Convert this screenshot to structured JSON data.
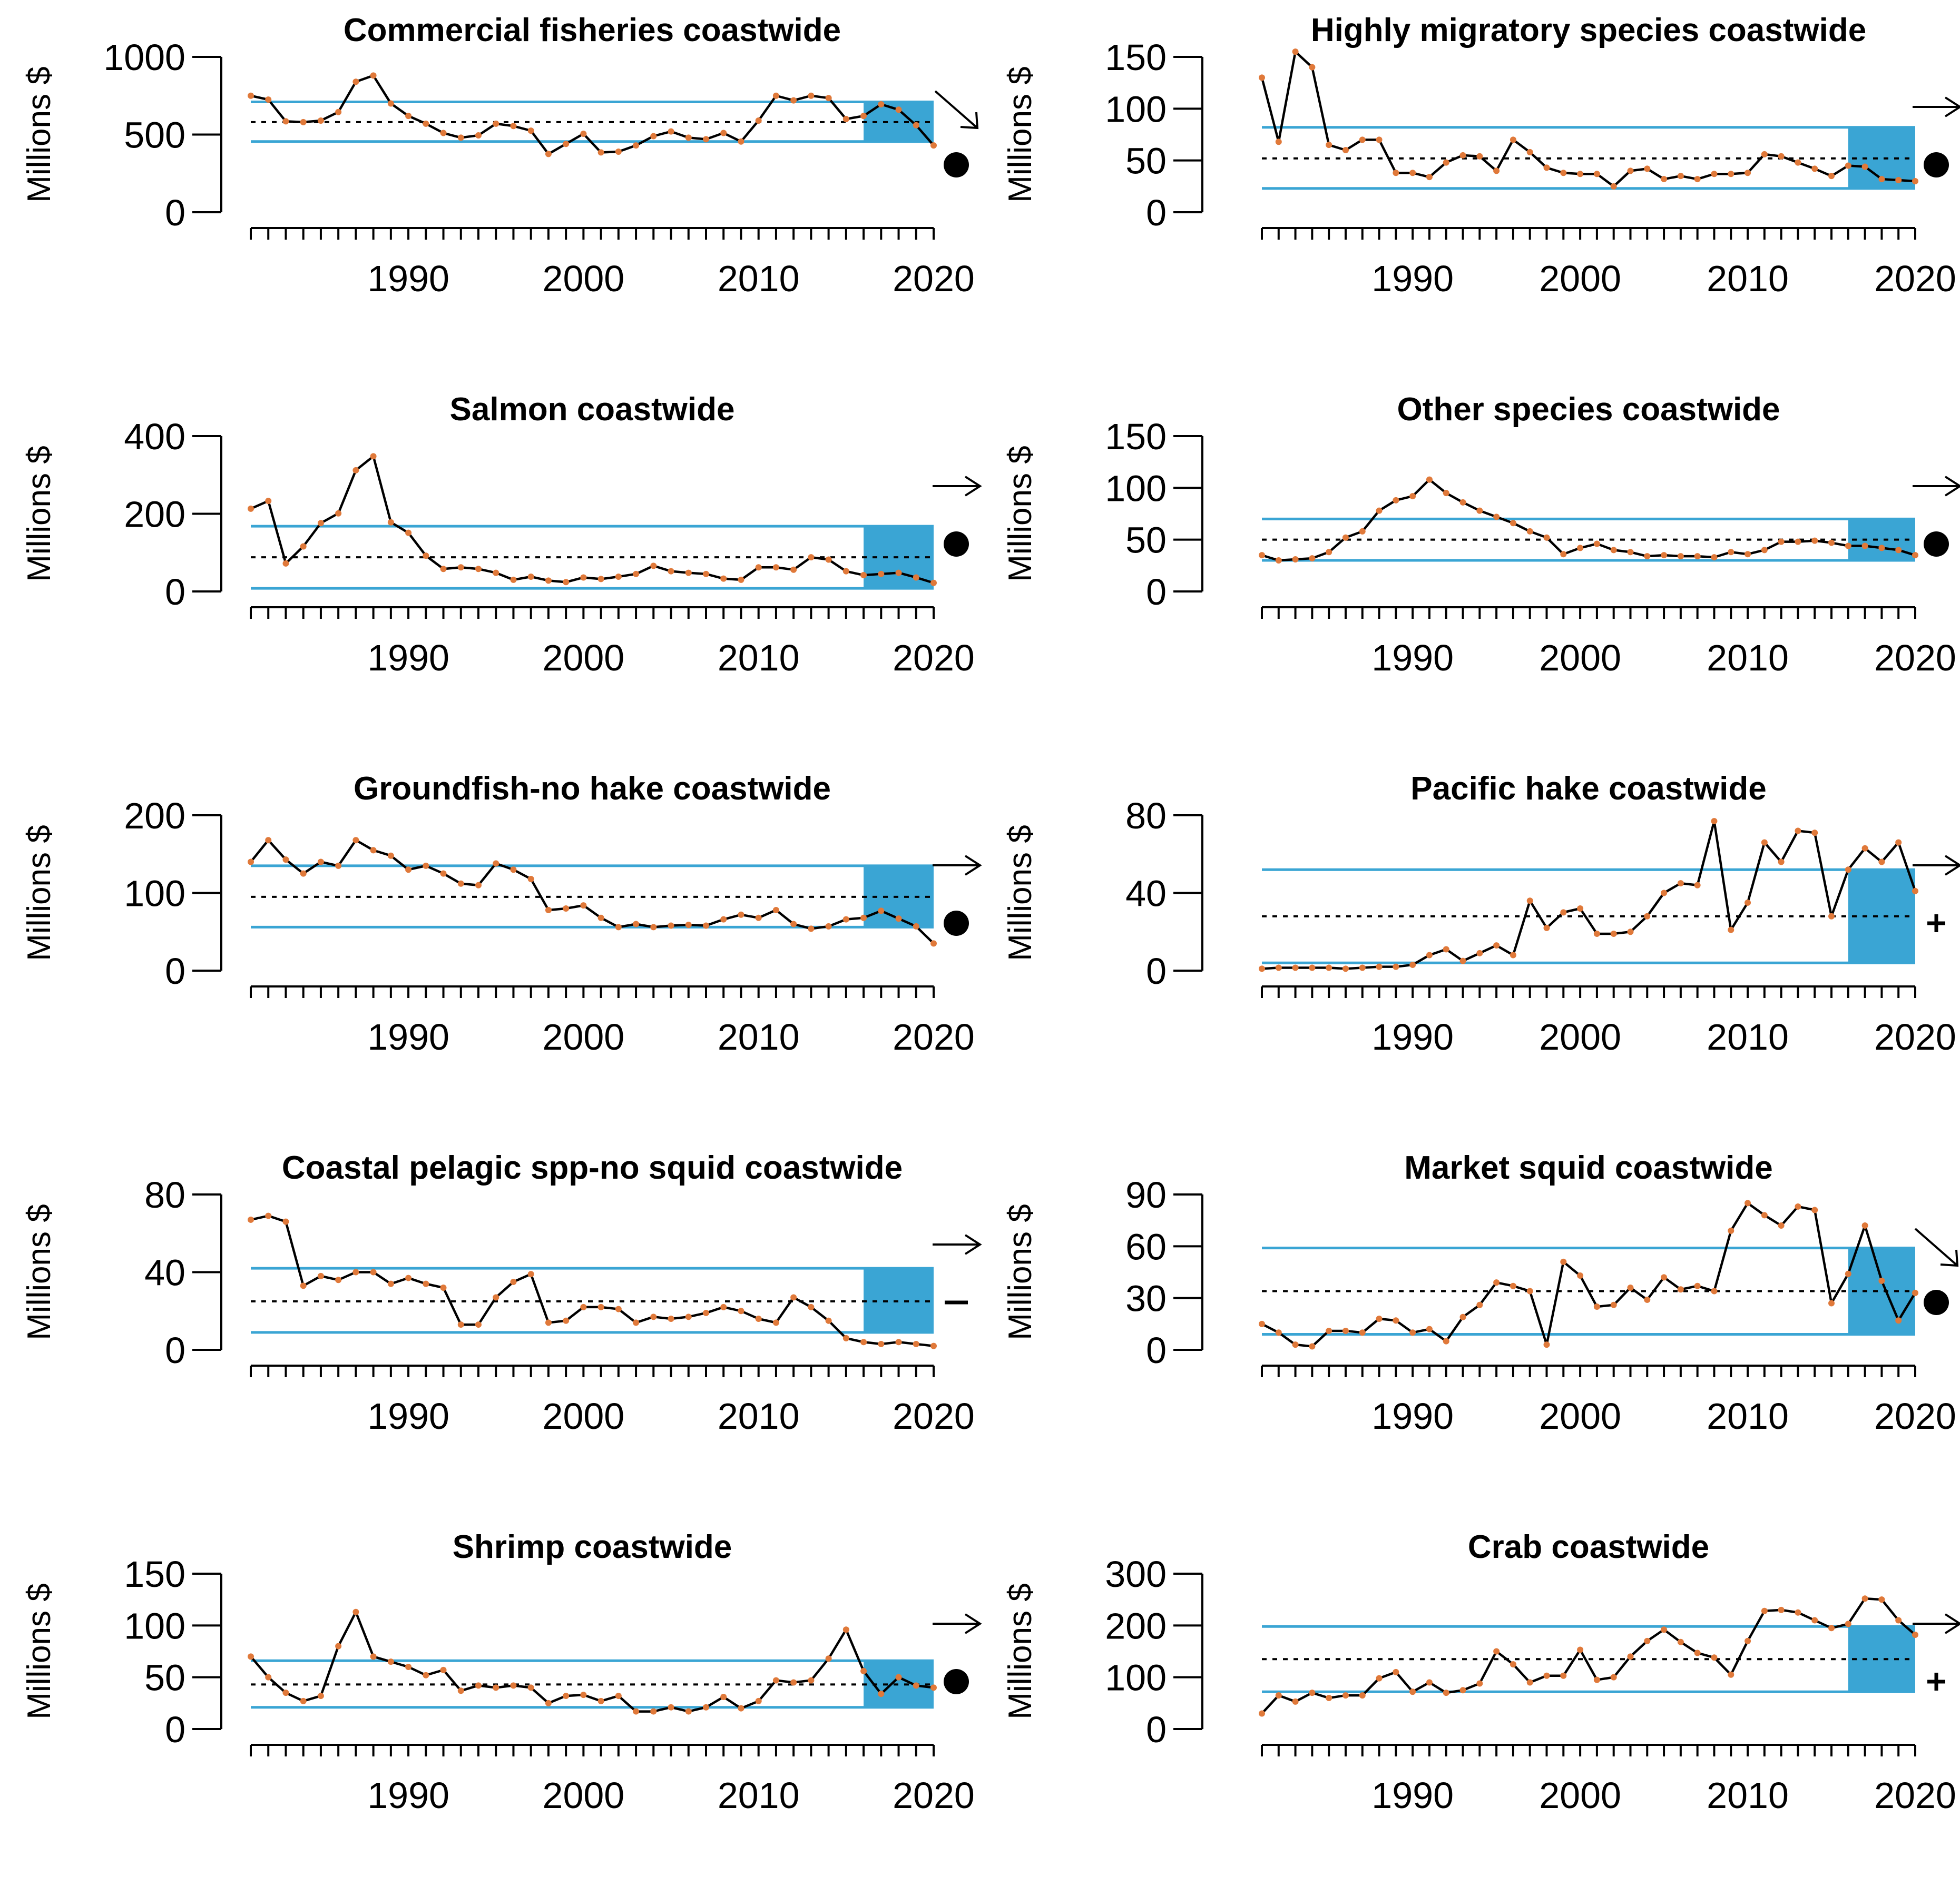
{
  "colors": {
    "series_line": "#000000",
    "points": "#e0793a",
    "sd_lines": "#3aa5d4",
    "recent_box": "#3aa5d4",
    "mean_line": "#000000"
  },
  "chart_data": [
    {
      "type": "line",
      "title": "Commercial fisheries coastwide",
      "ylabel": "Millions $",
      "ylim": [
        0,
        1000
      ],
      "yticks": [
        "0",
        "500",
        "1000"
      ],
      "xticks": [
        "1990",
        "2000",
        "2010",
        "2020"
      ],
      "x": [
        1981,
        1982,
        1983,
        1984,
        1985,
        1986,
        1987,
        1988,
        1989,
        1990,
        1991,
        1992,
        1993,
        1994,
        1995,
        1996,
        1997,
        1998,
        1999,
        2000,
        2001,
        2002,
        2003,
        2004,
        2005,
        2006,
        2007,
        2008,
        2009,
        2010,
        2011,
        2012,
        2013,
        2014,
        2015,
        2016,
        2017,
        2018,
        2019,
        2020
      ],
      "values": [
        750,
        725,
        585,
        580,
        590,
        645,
        840,
        880,
        700,
        620,
        570,
        510,
        480,
        495,
        570,
        555,
        525,
        375,
        440,
        505,
        385,
        390,
        430,
        490,
        520,
        480,
        470,
        510,
        455,
        590,
        750,
        720,
        750,
        735,
        600,
        620,
        695,
        660,
        560,
        430
      ],
      "mean": 580,
      "sd_upper": 710,
      "sd_lower": 455,
      "recent_window": [
        2016,
        2020
      ],
      "trend_symbol": "arrow-down",
      "mean_symbol": "dot"
    },
    {
      "type": "line",
      "title": "Highly migratory species coastwide",
      "ylabel": "Millions $",
      "ylim": [
        0,
        150
      ],
      "yticks": [
        "0",
        "50",
        "100",
        "150"
      ],
      "xticks": [
        "1990",
        "2000",
        "2010",
        "2020"
      ],
      "x": [
        1981,
        1982,
        1983,
        1984,
        1985,
        1986,
        1987,
        1988,
        1989,
        1990,
        1991,
        1992,
        1993,
        1994,
        1995,
        1996,
        1997,
        1998,
        1999,
        2000,
        2001,
        2002,
        2003,
        2004,
        2005,
        2006,
        2007,
        2008,
        2009,
        2010,
        2011,
        2012,
        2013,
        2014,
        2015,
        2016,
        2017,
        2018,
        2019,
        2020
      ],
      "values": [
        130,
        68,
        155,
        140,
        65,
        60,
        70,
        70,
        38,
        38,
        34,
        48,
        55,
        54,
        40,
        70,
        58,
        43,
        38,
        37,
        37,
        25,
        40,
        42,
        32,
        35,
        32,
        37,
        37,
        38,
        56,
        54,
        48,
        42,
        35,
        45,
        44,
        32,
        31,
        30
      ],
      "mean": 52,
      "sd_upper": 82,
      "sd_lower": 23,
      "recent_window": [
        2016,
        2020
      ],
      "trend_symbol": "arrow-right",
      "mean_symbol": "dot"
    },
    {
      "type": "line",
      "title": "Salmon coastwide",
      "ylabel": "Millions $",
      "ylim": [
        0,
        400
      ],
      "yticks": [
        "0",
        "200",
        "400"
      ],
      "xticks": [
        "1990",
        "2000",
        "2010",
        "2020"
      ],
      "x": [
        1981,
        1982,
        1983,
        1984,
        1985,
        1986,
        1987,
        1988,
        1989,
        1990,
        1991,
        1992,
        1993,
        1994,
        1995,
        1996,
        1997,
        1998,
        1999,
        2000,
        2001,
        2002,
        2003,
        2004,
        2005,
        2006,
        2007,
        2008,
        2009,
        2010,
        2011,
        2012,
        2013,
        2014,
        2015,
        2016,
        2017,
        2018,
        2019,
        2020
      ],
      "values": [
        213,
        233,
        72,
        116,
        176,
        201,
        312,
        348,
        178,
        151,
        92,
        58,
        62,
        58,
        48,
        30,
        38,
        28,
        24,
        36,
        32,
        38,
        45,
        66,
        52,
        48,
        45,
        33,
        30,
        62,
        62,
        56,
        88,
        82,
        52,
        42,
        45,
        48,
        36,
        22
      ],
      "mean": 88,
      "sd_upper": 168,
      "sd_lower": 8,
      "recent_window": [
        2016,
        2020
      ],
      "trend_symbol": "arrow-right",
      "mean_symbol": "dot"
    },
    {
      "type": "line",
      "title": "Other species coastwide",
      "ylabel": "Millions $",
      "ylim": [
        0,
        150
      ],
      "yticks": [
        "0",
        "50",
        "100",
        "150"
      ],
      "xticks": [
        "1990",
        "2000",
        "2010",
        "2020"
      ],
      "x": [
        1981,
        1982,
        1983,
        1984,
        1985,
        1986,
        1987,
        1988,
        1989,
        1990,
        1991,
        1992,
        1993,
        1994,
        1995,
        1996,
        1997,
        1998,
        1999,
        2000,
        2001,
        2002,
        2003,
        2004,
        2005,
        2006,
        2007,
        2008,
        2009,
        2010,
        2011,
        2012,
        2013,
        2014,
        2015,
        2016,
        2017,
        2018,
        2019,
        2020
      ],
      "values": [
        35,
        30,
        31,
        32,
        38,
        52,
        58,
        78,
        88,
        92,
        108,
        95,
        86,
        78,
        72,
        66,
        58,
        52,
        36,
        42,
        46,
        40,
        38,
        34,
        35,
        34,
        34,
        33,
        38,
        36,
        40,
        48,
        48,
        49,
        47,
        44,
        44,
        42,
        40,
        35
      ],
      "mean": 50,
      "sd_upper": 70,
      "sd_lower": 30,
      "recent_window": [
        2016,
        2020
      ],
      "trend_symbol": "arrow-right",
      "mean_symbol": "dot"
    },
    {
      "type": "line",
      "title": "Groundfish-no hake coastwide",
      "ylabel": "Millions $",
      "ylim": [
        0,
        200
      ],
      "yticks": [
        "0",
        "100",
        "200"
      ],
      "xticks": [
        "1990",
        "2000",
        "2010",
        "2020"
      ],
      "x": [
        1981,
        1982,
        1983,
        1984,
        1985,
        1986,
        1987,
        1988,
        1989,
        1990,
        1991,
        1992,
        1993,
        1994,
        1995,
        1996,
        1997,
        1998,
        1999,
        2000,
        2001,
        2002,
        2003,
        2004,
        2005,
        2006,
        2007,
        2008,
        2009,
        2010,
        2011,
        2012,
        2013,
        2014,
        2015,
        2016,
        2017,
        2018,
        2019,
        2020
      ],
      "values": [
        140,
        168,
        143,
        125,
        140,
        135,
        168,
        155,
        148,
        130,
        135,
        125,
        112,
        110,
        138,
        130,
        118,
        78,
        80,
        84,
        68,
        56,
        60,
        56,
        58,
        59,
        58,
        66,
        72,
        68,
        78,
        60,
        54,
        57,
        66,
        68,
        77,
        67,
        57,
        35
      ],
      "mean": 95,
      "sd_upper": 135,
      "sd_lower": 56,
      "recent_window": [
        2016,
        2020
      ],
      "trend_symbol": "arrow-right",
      "mean_symbol": "dot"
    },
    {
      "type": "line",
      "title": "Pacific hake coastwide",
      "ylabel": "Millions $",
      "ylim": [
        0,
        80
      ],
      "yticks": [
        "0",
        "40",
        "80"
      ],
      "xticks": [
        "1990",
        "2000",
        "2010",
        "2020"
      ],
      "x": [
        1981,
        1982,
        1983,
        1984,
        1985,
        1986,
        1987,
        1988,
        1989,
        1990,
        1991,
        1992,
        1993,
        1994,
        1995,
        1996,
        1997,
        1998,
        1999,
        2000,
        2001,
        2002,
        2003,
        2004,
        2005,
        2006,
        2007,
        2008,
        2009,
        2010,
        2011,
        2012,
        2013,
        2014,
        2015,
        2016,
        2017,
        2018,
        2019,
        2020
      ],
      "values": [
        1,
        1.5,
        1.5,
        1.5,
        1.5,
        1,
        1.5,
        2,
        2,
        3,
        8,
        11,
        5,
        9,
        13,
        8,
        36,
        22,
        30,
        32,
        19,
        19,
        20,
        28,
        40,
        45,
        44,
        77,
        21,
        35,
        66,
        56,
        72,
        71,
        28,
        52,
        63,
        56,
        66,
        41
      ],
      "mean": 28,
      "sd_upper": 52,
      "sd_lower": 4,
      "recent_window": [
        2016,
        2020
      ],
      "trend_symbol": "arrow-right",
      "mean_symbol": "plus"
    },
    {
      "type": "line",
      "title": "Coastal pelagic spp-no squid coastwide",
      "ylabel": "Millions $",
      "ylim": [
        0,
        80
      ],
      "yticks": [
        "0",
        "40",
        "80"
      ],
      "xticks": [
        "1990",
        "2000",
        "2010",
        "2020"
      ],
      "x": [
        1981,
        1982,
        1983,
        1984,
        1985,
        1986,
        1987,
        1988,
        1989,
        1990,
        1991,
        1992,
        1993,
        1994,
        1995,
        1996,
        1997,
        1998,
        1999,
        2000,
        2001,
        2002,
        2003,
        2004,
        2005,
        2006,
        2007,
        2008,
        2009,
        2010,
        2011,
        2012,
        2013,
        2014,
        2015,
        2016,
        2017,
        2018,
        2019,
        2020
      ],
      "values": [
        67,
        69,
        66,
        33,
        38,
        36,
        40,
        40,
        34,
        37,
        34,
        32,
        13,
        13,
        27,
        35,
        39,
        14,
        15,
        22,
        22,
        21,
        14,
        17,
        16,
        17,
        19,
        22,
        20,
        16,
        14,
        27,
        22,
        15,
        6,
        4,
        3,
        4,
        3,
        2
      ],
      "mean": 25,
      "sd_upper": 42,
      "sd_lower": 9,
      "recent_window": [
        2016,
        2020
      ],
      "trend_symbol": "arrow-right",
      "mean_symbol": "minus"
    },
    {
      "type": "line",
      "title": "Market squid coastwide",
      "ylabel": "Millions $",
      "ylim": [
        0,
        90
      ],
      "yticks": [
        "0",
        "30",
        "60",
        "90"
      ],
      "xticks": [
        "1990",
        "2000",
        "2010",
        "2020"
      ],
      "x": [
        1981,
        1982,
        1983,
        1984,
        1985,
        1986,
        1987,
        1988,
        1989,
        1990,
        1991,
        1992,
        1993,
        1994,
        1995,
        1996,
        1997,
        1998,
        1999,
        2000,
        2001,
        2002,
        2003,
        2004,
        2005,
        2006,
        2007,
        2008,
        2009,
        2010,
        2011,
        2012,
        2013,
        2014,
        2015,
        2016,
        2017,
        2018,
        2019,
        2020
      ],
      "values": [
        15,
        10,
        3,
        2,
        11,
        11,
        10,
        18,
        17,
        10,
        12,
        5,
        19,
        26,
        39,
        37,
        34,
        3,
        51,
        43,
        25,
        26,
        36,
        29,
        42,
        35,
        37,
        34,
        69,
        85,
        78,
        72,
        83,
        81,
        27,
        44,
        72,
        40,
        17,
        33
      ],
      "mean": 34,
      "sd_upper": 59,
      "sd_lower": 9,
      "recent_window": [
        2016,
        2020
      ],
      "trend_symbol": "arrow-down",
      "mean_symbol": "dot"
    },
    {
      "type": "line",
      "title": "Shrimp coastwide",
      "ylabel": "Millions $",
      "ylim": [
        0,
        150
      ],
      "yticks": [
        "0",
        "50",
        "100",
        "150"
      ],
      "xticks": [
        "1990",
        "2000",
        "2010",
        "2020"
      ],
      "x": [
        1981,
        1982,
        1983,
        1984,
        1985,
        1986,
        1987,
        1988,
        1989,
        1990,
        1991,
        1992,
        1993,
        1994,
        1995,
        1996,
        1997,
        1998,
        1999,
        2000,
        2001,
        2002,
        2003,
        2004,
        2005,
        2006,
        2007,
        2008,
        2009,
        2010,
        2011,
        2012,
        2013,
        2014,
        2015,
        2016,
        2017,
        2018,
        2019,
        2020
      ],
      "values": [
        70,
        50,
        35,
        27,
        32,
        80,
        113,
        70,
        65,
        60,
        52,
        57,
        37,
        42,
        40,
        42,
        40,
        25,
        32,
        33,
        27,
        32,
        17,
        17,
        21,
        17,
        21,
        31,
        20,
        27,
        47,
        45,
        47,
        68,
        96,
        56,
        34,
        50,
        42,
        40
      ],
      "mean": 43,
      "sd_upper": 66,
      "sd_lower": 21,
      "recent_window": [
        2016,
        2020
      ],
      "trend_symbol": "arrow-right",
      "mean_symbol": "dot"
    },
    {
      "type": "line",
      "title": "Crab coastwide",
      "ylabel": "Millions $",
      "ylim": [
        0,
        300
      ],
      "yticks": [
        "0",
        "100",
        "200",
        "300"
      ],
      "xticks": [
        "1990",
        "2000",
        "2010",
        "2020"
      ],
      "x": [
        1981,
        1982,
        1983,
        1984,
        1985,
        1986,
        1987,
        1988,
        1989,
        1990,
        1991,
        1992,
        1993,
        1994,
        1995,
        1996,
        1997,
        1998,
        1999,
        2000,
        2001,
        2002,
        2003,
        2004,
        2005,
        2006,
        2007,
        2008,
        2009,
        2010,
        2011,
        2012,
        2013,
        2014,
        2015,
        2016,
        2017,
        2018,
        2019,
        2020
      ],
      "values": [
        30,
        65,
        53,
        70,
        60,
        65,
        65,
        98,
        110,
        72,
        90,
        70,
        75,
        88,
        150,
        125,
        90,
        103,
        103,
        153,
        95,
        100,
        140,
        170,
        192,
        168,
        147,
        138,
        105,
        170,
        228,
        230,
        225,
        210,
        195,
        203,
        252,
        250,
        210,
        182
      ],
      "mean": 135,
      "sd_upper": 198,
      "sd_lower": 72,
      "recent_window": [
        2016,
        2020
      ],
      "trend_symbol": "arrow-right",
      "mean_symbol": "plus"
    }
  ]
}
